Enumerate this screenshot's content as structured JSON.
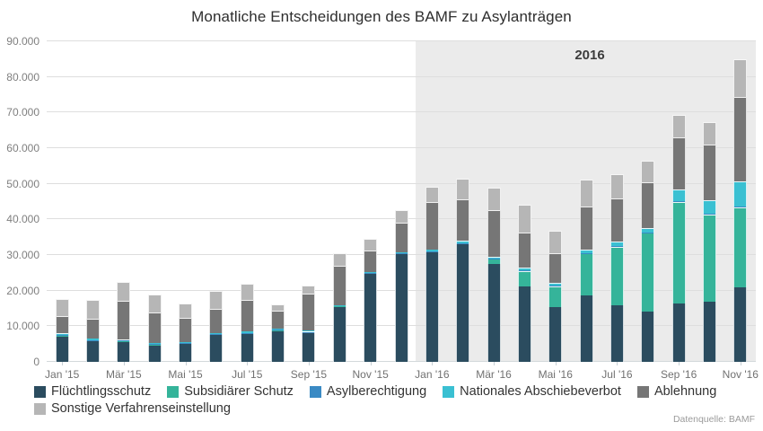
{
  "chart": {
    "title": "Monatliche Entscheidungen des BAMF zu Asylanträgen",
    "source_note": "Datenquelle: BAMF"
  },
  "chart_data": {
    "type": "bar",
    "stacked": true,
    "title": "Monatliche Entscheidungen des BAMF zu Asylanträgen",
    "xlabel": "",
    "ylabel": "",
    "ylim": [
      0,
      90000
    ],
    "y_tick_step": 10000,
    "grid": true,
    "legend_position": "bottom",
    "categories": [
      "Jan '15",
      "Feb '15",
      "Mär '15",
      "Apr '15",
      "Mai '15",
      "Jun '15",
      "Jul '15",
      "Aug '15",
      "Sep '15",
      "Okt '15",
      "Nov '15",
      "Dez '15",
      "Jan '16",
      "Feb '16",
      "Mär '16",
      "Apr '16",
      "Mai '16",
      "Jun '16",
      "Jul '16",
      "Aug '16",
      "Sep '16",
      "Okt '16",
      "Nov '16"
    ],
    "x_tick_labels": [
      "Jan '15",
      "Mär '15",
      "Mai '15",
      "Jul '15",
      "Sep '15",
      "Nov '15",
      "Jan '16",
      "Mär '16",
      "Mai '16",
      "Jul '16",
      "Sep '16",
      "Nov '16"
    ],
    "highlight_region": {
      "label": "2016",
      "from": "Jan '16",
      "to": "Nov '16",
      "color": "#ebebeb"
    },
    "series": [
      {
        "name": "Flüchtlingsschutz",
        "color": "#2b4c5f",
        "values": [
          7300,
          6000,
          5800,
          4800,
          5200,
          7700,
          8000,
          8900,
          8300,
          15600,
          24800,
          30400,
          30800,
          33000,
          27600,
          21300,
          15300,
          18600,
          16000,
          14200,
          16400,
          16900,
          20900
        ]
      },
      {
        "name": "Subsidiärer Schutz",
        "color": "#35b49a",
        "values": [
          50,
          50,
          50,
          50,
          50,
          50,
          50,
          50,
          50,
          100,
          100,
          100,
          200,
          300,
          1400,
          4200,
          6000,
          11900,
          16400,
          22000,
          28600,
          24400,
          22500
        ]
      },
      {
        "name": "Asylberechtigung",
        "color": "#3a8ac4",
        "values": [
          100,
          100,
          100,
          100,
          100,
          100,
          100,
          100,
          100,
          100,
          100,
          100,
          100,
          100,
          100,
          100,
          100,
          100,
          150,
          150,
          200,
          250,
          300
        ]
      },
      {
        "name": "Nationales Abschiebeverbot",
        "color": "#3ac0d2",
        "values": [
          550,
          350,
          450,
          350,
          250,
          250,
          350,
          250,
          400,
          200,
          200,
          200,
          300,
          700,
          500,
          850,
          700,
          1000,
          1250,
          1300,
          3300,
          3900,
          6900
        ]
      },
      {
        "name": "Ablehnung",
        "color": "#767676",
        "values": [
          4800,
          5700,
          10800,
          8500,
          6700,
          6900,
          9000,
          5100,
          10250,
          11100,
          6000,
          8300,
          13400,
          11500,
          13100,
          9800,
          8350,
          12000,
          12100,
          12650,
          14500,
          15550,
          23700
        ]
      },
      {
        "name": "Sonstige Verfahrenseinstellung",
        "color": "#b6b6b6",
        "values": [
          4900,
          5300,
          5300,
          5000,
          4000,
          4800,
          4500,
          1800,
          2400,
          3400,
          3400,
          3600,
          4400,
          5900,
          6300,
          7850,
          6300,
          7600,
          6900,
          6300,
          6300,
          6250,
          10700
        ]
      }
    ]
  }
}
